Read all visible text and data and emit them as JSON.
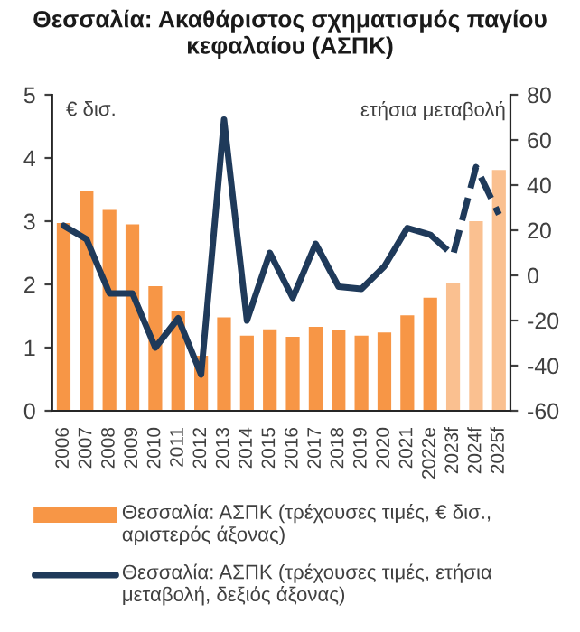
{
  "chart_data": {
    "type": "bar",
    "title": "Θεσσαλία: Ακαθάριστος σχηματισμός παγίου κεφαλαίου (ΑΣΠΚ)",
    "ylabel": "€ δισ.",
    "y2label": "ετήσια μεταβολή",
    "categories": [
      "2006",
      "2007",
      "2008",
      "2009",
      "2010",
      "2011",
      "2012",
      "2013",
      "2014",
      "2015",
      "2016",
      "2017",
      "2018",
      "2019",
      "2020",
      "2021",
      "2022e",
      "2023f",
      "2024f",
      "2025f"
    ],
    "series": [
      {
        "name": "Θεσσαλία: ΑΣΠΚ (τρέχουσες τιμές, € δισ., αριστερός άξονας)",
        "color": "#f79646",
        "colors": [
          "#f79646",
          "#f79646",
          "#f79646",
          "#f79646",
          "#f79646",
          "#f79646",
          "#f79646",
          "#f79646",
          "#f79646",
          "#f79646",
          "#f79646",
          "#f79646",
          "#f79646",
          "#f79646",
          "#f79646",
          "#f79646",
          "#f79646",
          "#fac090",
          "#fac090",
          "#fac090"
        ],
        "values": [
          2.97,
          3.48,
          3.18,
          2.95,
          1.97,
          1.57,
          0.87,
          1.48,
          1.19,
          1.29,
          1.17,
          1.33,
          1.27,
          1.19,
          1.24,
          1.51,
          1.79,
          2.02,
          3.0,
          3.81
        ]
      },
      {
        "name": "Θεσσαλία: ΑΣΠΚ (τρέχουσες τιμές, ετήσια μεταβολή, δεξιός άξονας)",
        "type": "line",
        "axis": "y2",
        "color": "#1f3a5a",
        "line_style": "solid",
        "values": [
          22,
          16,
          -8,
          -8,
          -32,
          -19,
          -44,
          69,
          -20,
          10,
          -10,
          14,
          -5,
          -6,
          4,
          21,
          18,
          null,
          null,
          null
        ]
      },
      {
        "type": "line",
        "axis": "y2",
        "color": "#1f3a5a",
        "line_style": "dashed",
        "values": [
          null,
          null,
          null,
          null,
          null,
          null,
          null,
          null,
          null,
          null,
          null,
          null,
          null,
          null,
          null,
          null,
          18,
          9,
          48,
          27
        ]
      }
    ],
    "ylim": [
      0,
      5
    ],
    "yticks": [
      0,
      1,
      2,
      3,
      4,
      5
    ],
    "y2lim": [
      -60,
      80
    ],
    "y2ticks": [
      -60,
      -40,
      -20,
      0,
      20,
      40,
      60,
      80
    ],
    "grid": false,
    "legend": "bottom"
  }
}
